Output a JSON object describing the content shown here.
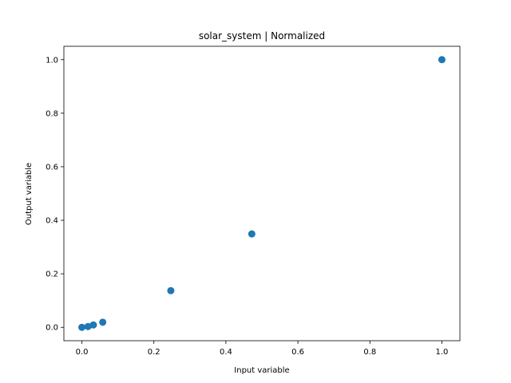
{
  "chart_data": {
    "type": "scatter",
    "title": "solar_system | Normalized",
    "xlabel": "Input variable",
    "ylabel": "Output variable",
    "xlim": [
      -0.05,
      1.05
    ],
    "ylim": [
      -0.05,
      1.05
    ],
    "xticks": [
      0.0,
      0.2,
      0.4,
      0.6,
      0.8,
      1.0
    ],
    "yticks": [
      0.0,
      0.2,
      0.4,
      0.6,
      0.8,
      1.0
    ],
    "xtick_labels": [
      "0.0",
      "0.2",
      "0.4",
      "0.6",
      "0.8",
      "1.0"
    ],
    "ytick_labels": [
      "0.0",
      "0.2",
      "0.4",
      "0.6",
      "0.8",
      "1.0"
    ],
    "grid": false,
    "marker_color": "#1f77b4",
    "series": [
      {
        "x": [
          0.0,
          0.017,
          0.032,
          0.058,
          0.247,
          0.472,
          1.0
        ],
        "y": [
          0.0,
          0.003,
          0.009,
          0.019,
          0.137,
          0.349,
          1.0
        ]
      }
    ]
  }
}
